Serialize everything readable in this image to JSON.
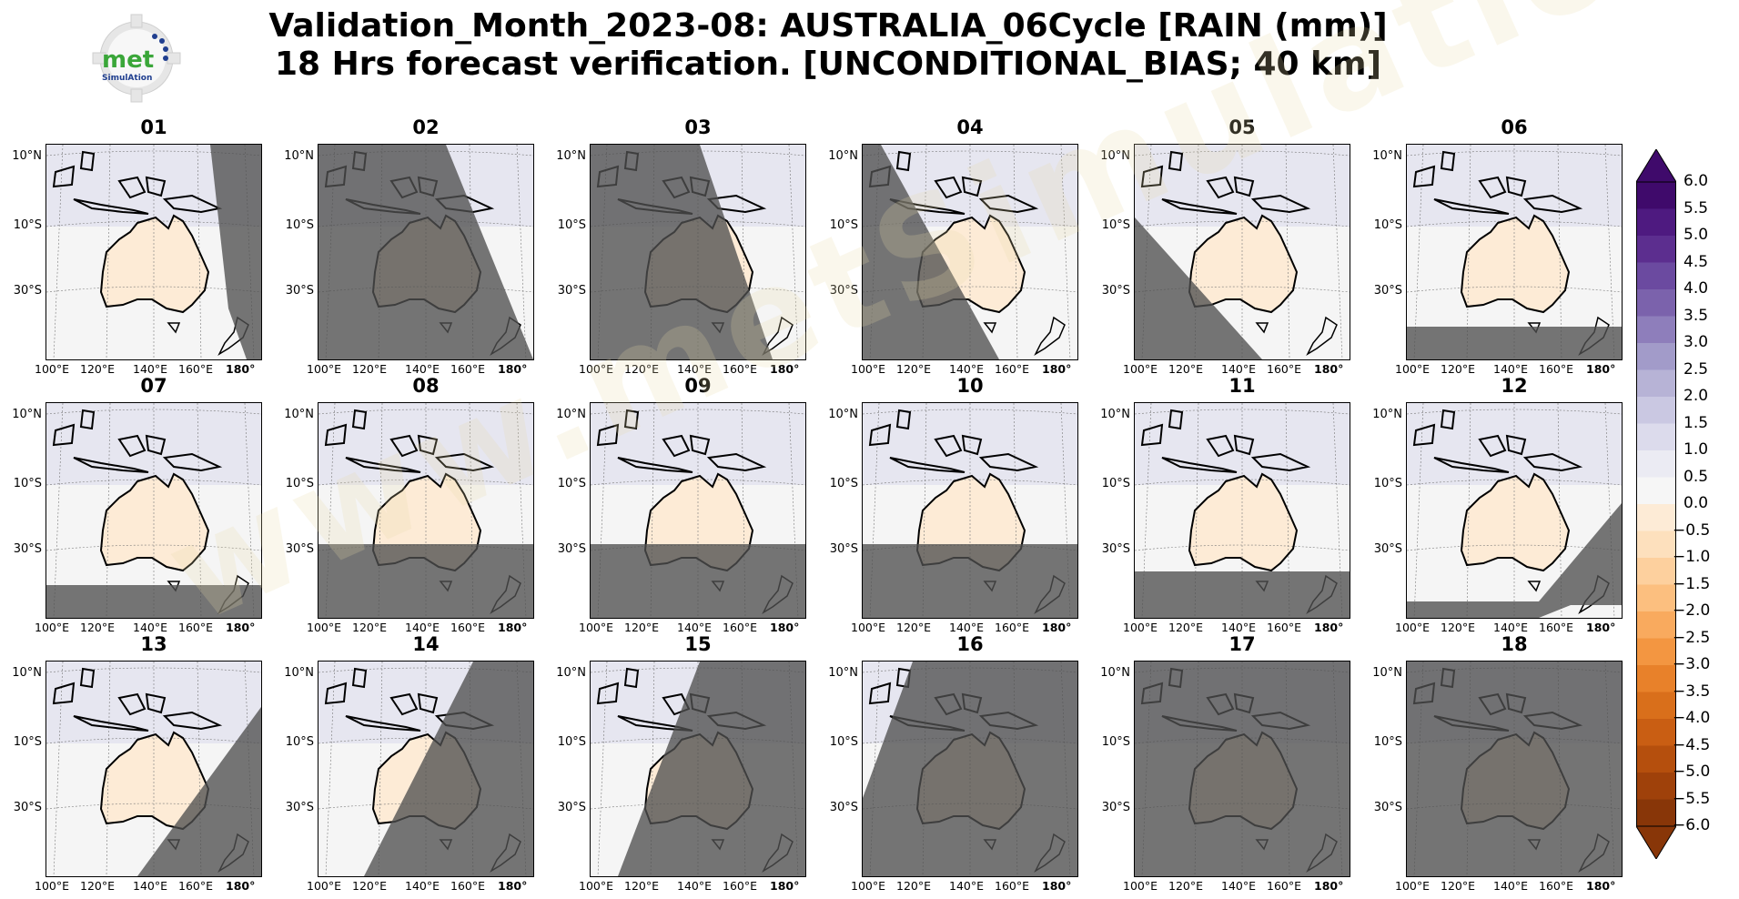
{
  "title": {
    "line1": "Validation_Month_2023-08: AUSTRALIA_06Cycle [RAIN (mm)]",
    "line2": "18 Hrs forecast verification. [UNCONDITIONAL_BIAS; 40 km]"
  },
  "logo": {
    "word": "met",
    "subword": "SimulAtion"
  },
  "watermark": "www.metSimulation.com",
  "lat_labels": [
    "10°N",
    "10°S",
    "30°S"
  ],
  "lon_labels": [
    "100°E",
    "120°E",
    "140°E",
    "160°E",
    "180°"
  ],
  "panels": [
    {
      "label": "01",
      "mask": "east-strip"
    },
    {
      "label": "02",
      "mask": "west-big"
    },
    {
      "label": "03",
      "mask": "west-diag"
    },
    {
      "label": "04",
      "mask": "west-diag-small"
    },
    {
      "label": "05",
      "mask": "southwest-diag"
    },
    {
      "label": "06",
      "mask": "south-band"
    },
    {
      "label": "07",
      "mask": "south-band"
    },
    {
      "label": "08",
      "mask": "south-wide"
    },
    {
      "label": "09",
      "mask": "south-wide"
    },
    {
      "label": "10",
      "mask": "south-wide"
    },
    {
      "label": "11",
      "mask": "south-narrow"
    },
    {
      "label": "12",
      "mask": "southeast-diag"
    },
    {
      "label": "13",
      "mask": "southeast-big"
    },
    {
      "label": "14",
      "mask": "east-diag"
    },
    {
      "label": "15",
      "mask": "east-big"
    },
    {
      "label": "16",
      "mask": "almost-all"
    },
    {
      "label": "17",
      "mask": "all"
    },
    {
      "label": "18",
      "mask": "all"
    }
  ],
  "colorbar": {
    "ticks": [
      "6.0",
      "5.5",
      "5.0",
      "4.5",
      "4.0",
      "3.5",
      "3.0",
      "2.5",
      "2.0",
      "1.5",
      "1.0",
      "0.5",
      "0.0",
      "−0.5",
      "−1.0",
      "−1.5",
      "−2.0",
      "−2.5",
      "−3.0",
      "−3.5",
      "−4.0",
      "−4.5",
      "−5.0",
      "−5.5",
      "−6.0"
    ],
    "colors_top_to_bottom": [
      "#3f0a6b",
      "#4e1a80",
      "#5c2e8f",
      "#6b4aa0",
      "#7b62ac",
      "#8e7ebb",
      "#a29bc9",
      "#b7b3d6",
      "#cac8e2",
      "#dcdbec",
      "#ebebf3",
      "#f6f6f6",
      "#fdebd6",
      "#fde0bd",
      "#fdd09e",
      "#fcbf7f",
      "#f9aa5e",
      "#f39641",
      "#e8812a",
      "#d96f1b",
      "#c95e13",
      "#b54f0d",
      "#9f410a",
      "#883608"
    ]
  }
}
